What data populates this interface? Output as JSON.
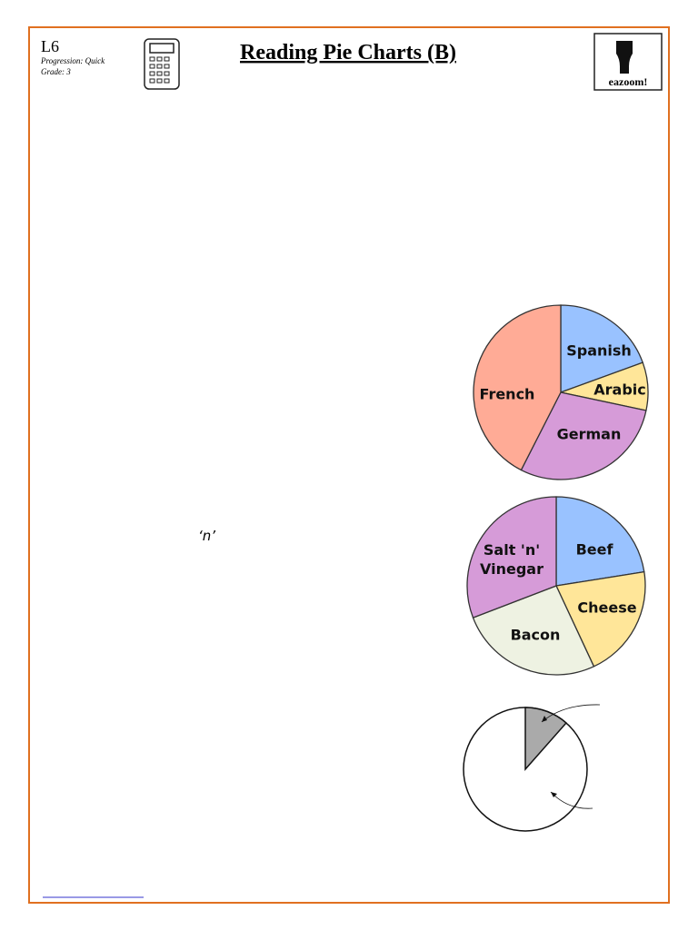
{
  "header": {
    "level": "L6",
    "progression": "Progression: Quick",
    "grade": "Grade: 3",
    "title": "Reading Pie Charts (B)",
    "logo": "eazoom!"
  },
  "note": "‘n’",
  "pies": [
    {
      "slices": [
        {
          "label": [
            "Spanish"
          ]
        },
        {
          "label": [
            "Arabic"
          ]
        },
        {
          "label": [
            "German"
          ]
        },
        {
          "label": [
            "French"
          ]
        }
      ]
    },
    {
      "slices": [
        {
          "label": [
            "Beef"
          ]
        },
        {
          "label": [
            "Cheese"
          ]
        },
        {
          "label": [
            "Bacon"
          ]
        },
        {
          "label": [
            "Salt 'n'",
            "Vinegar"
          ]
        }
      ]
    }
  ]
}
